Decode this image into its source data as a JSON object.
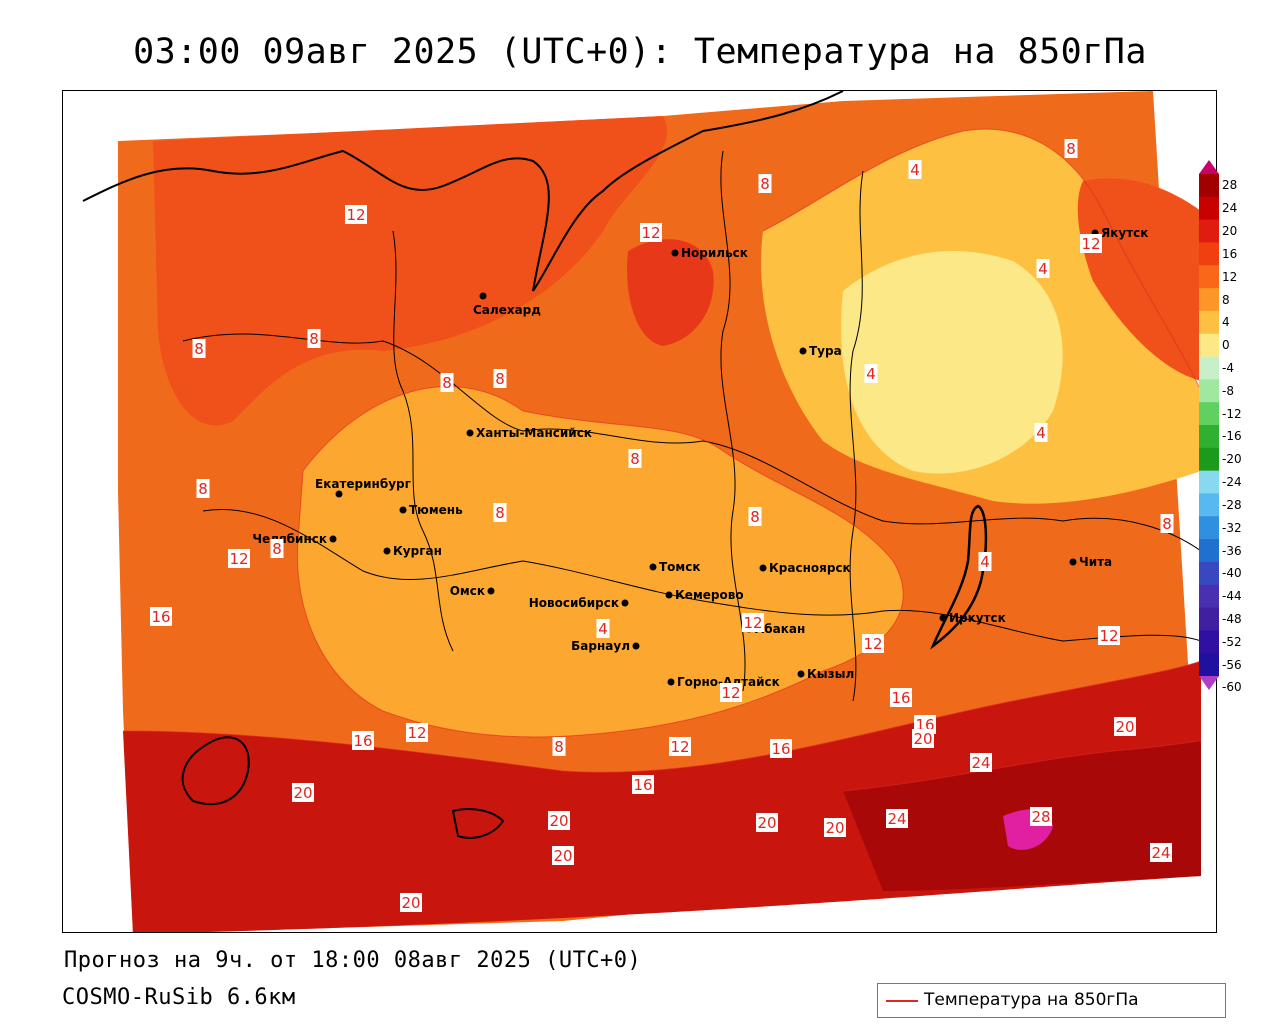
{
  "title": "03:00 09авг 2025 (UTC+0): Температура на 850гПа",
  "footer": {
    "forecast": "Прогноз на 9ч. от 18:00 08авг 2025 (UTC+0)",
    "model": "COSMO-RuSib 6.6км"
  },
  "legend": {
    "label": "Температура на 850гПа",
    "color": "#e0261e"
  },
  "colorbar": {
    "ticks": [
      "28",
      "24",
      "20",
      "16",
      "12",
      "8",
      "4",
      "0",
      "-4",
      "-8",
      "-12",
      "-16",
      "-20",
      "-24",
      "-28",
      "-32",
      "-36",
      "-40",
      "-44",
      "-48",
      "-52",
      "-56",
      "-60"
    ],
    "colors": [
      "#c8006a",
      "#a00000",
      "#c80000",
      "#e01c10",
      "#f04010",
      "#f86818",
      "#fc9628",
      "#fdc040",
      "#fde888",
      "#c8f0c8",
      "#a0e8a0",
      "#60d060",
      "#30b030",
      "#1c9a1c",
      "#88d8f0",
      "#58b8f0",
      "#3090e0",
      "#2070d0",
      "#3848c0",
      "#4830b0",
      "#4020a0",
      "#3010a0",
      "#2010a0",
      "#b03cc8"
    ]
  },
  "cities": [
    {
      "name": "Норильск"
    },
    {
      "name": "Якутск"
    },
    {
      "name": "Салехард"
    },
    {
      "name": "Тура"
    },
    {
      "name": "Ханты-Мансийск"
    },
    {
      "name": "Екатеринбург"
    },
    {
      "name": "Тюмень"
    },
    {
      "name": "Челябинск"
    },
    {
      "name": "Курган"
    },
    {
      "name": "Омск"
    },
    {
      "name": "Новосибирск"
    },
    {
      "name": "Томск"
    },
    {
      "name": "Кемерово"
    },
    {
      "name": "Красноярск"
    },
    {
      "name": "Барнаул"
    },
    {
      "name": "Абакан"
    },
    {
      "name": "Иркутск"
    },
    {
      "name": "Чита"
    },
    {
      "name": "Кызыл"
    },
    {
      "name": "Горно-Алтайск"
    }
  ],
  "isotherm_labels": [
    "12",
    "12",
    "8",
    "8",
    "8",
    "8",
    "8",
    "8",
    "12",
    "16",
    "16",
    "12",
    "20",
    "8",
    "16",
    "20",
    "20",
    "20",
    "20",
    "20",
    "24",
    "24",
    "28",
    "24",
    "16",
    "12",
    "12",
    "20",
    "12",
    "16",
    "8",
    "4",
    "4",
    "4",
    "4",
    "4",
    "8",
    "12",
    "8",
    "8",
    "12",
    "16",
    "20",
    "12",
    "4",
    "8",
    "8"
  ],
  "icons": {
    "city": "city-dot-icon"
  }
}
